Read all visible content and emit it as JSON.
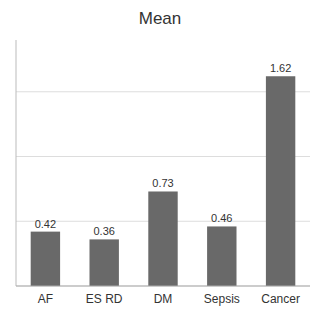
{
  "chart_data": {
    "type": "bar",
    "title": "Mean",
    "categories": [
      "AF",
      "ES RD",
      "DM",
      "Sepsis",
      "Cancer"
    ],
    "values": [
      0.42,
      0.36,
      0.73,
      0.46,
      1.62
    ],
    "color": "#696969",
    "ylim": [
      0,
      1.9
    ],
    "yticks": [
      0.0,
      0.5,
      1.0,
      1.5
    ],
    "grid": true,
    "data_labels": true,
    "tick_labels": "x"
  }
}
